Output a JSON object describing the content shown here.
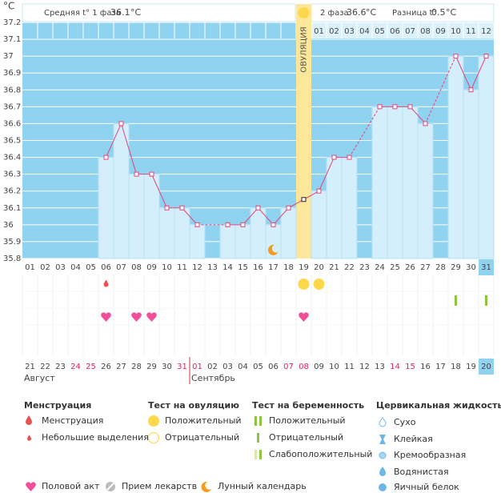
{
  "header": {
    "unit": "°C",
    "phase1_label": "Средняя t° 1 фаза",
    "phase1_avg": 36.1,
    "phase2_label": "2 фаза",
    "phase2_avg": 36.6,
    "diff_label": "Разница t°",
    "diff": 0.5
  },
  "chart_data": {
    "type": "line",
    "categories": [
      "01",
      "02",
      "03",
      "04",
      "05",
      "06",
      "07",
      "08",
      "09",
      "10",
      "11",
      "12",
      "13",
      "14",
      "15",
      "16",
      "17",
      "18",
      "19",
      "20",
      "21",
      "22",
      "23",
      "24",
      "25",
      "26",
      "27",
      "28",
      "29",
      "30",
      "31"
    ],
    "values": [
      null,
      null,
      null,
      null,
      null,
      36.4,
      36.6,
      36.3,
      36.3,
      36.1,
      36.1,
      36.0,
      null,
      36.0,
      36.0,
      36.1,
      36.0,
      36.1,
      36.15,
      36.2,
      36.4,
      36.4,
      null,
      36.7,
      36.7,
      36.7,
      36.6,
      null,
      37.0,
      36.8,
      37.0
    ],
    "ylim": [
      35.8,
      37.2
    ],
    "yticks": [
      35.8,
      35.9,
      36,
      36.1,
      36.2,
      36.3,
      36.4,
      36.5,
      36.6,
      36.7,
      36.8,
      36.9,
      37,
      37.1,
      37.2
    ],
    "color": "#e0457b",
    "bar_color": "#d4effb",
    "current_day": "31",
    "ovulation_day": "19",
    "ovulation_label": "ОВУЛЯЦИЯ",
    "phase2_days": [
      "01",
      "02",
      "03",
      "04",
      "05",
      "06",
      "07",
      "08",
      "09",
      "10",
      "11",
      "12"
    ],
    "moon_days": [
      "17"
    ],
    "menstruation_days": [
      "06"
    ],
    "ovulation_test_positive_days": [
      "19",
      "20"
    ],
    "pregnancy_test_positive_days": [
      "29",
      "31"
    ],
    "sex_days": [
      "06",
      "08",
      "09",
      "19"
    ],
    "dates": [
      {
        "label": "21",
        "weekend": false
      },
      {
        "label": "22",
        "weekend": false
      },
      {
        "label": "23",
        "weekend": false
      },
      {
        "label": "24",
        "weekend": true
      },
      {
        "label": "25",
        "weekend": true
      },
      {
        "label": "26",
        "weekend": false
      },
      {
        "label": "27",
        "weekend": false
      },
      {
        "label": "28",
        "weekend": false
      },
      {
        "label": "29",
        "weekend": false
      },
      {
        "label": "30",
        "weekend": false
      },
      {
        "label": "31",
        "weekend": true
      },
      {
        "label": "01",
        "weekend": true
      },
      {
        "label": "02",
        "weekend": false
      },
      {
        "label": "03",
        "weekend": false
      },
      {
        "label": "04",
        "weekend": false
      },
      {
        "label": "05",
        "weekend": false
      },
      {
        "label": "06",
        "weekend": false
      },
      {
        "label": "07",
        "weekend": true
      },
      {
        "label": "08",
        "weekend": true
      },
      {
        "label": "09",
        "weekend": false
      },
      {
        "label": "10",
        "weekend": false
      },
      {
        "label": "11",
        "weekend": false
      },
      {
        "label": "12",
        "weekend": false
      },
      {
        "label": "13",
        "weekend": false
      },
      {
        "label": "14",
        "weekend": true
      },
      {
        "label": "15",
        "weekend": true
      },
      {
        "label": "16",
        "weekend": false
      },
      {
        "label": "17",
        "weekend": false
      },
      {
        "label": "18",
        "weekend": false
      },
      {
        "label": "19",
        "weekend": false
      },
      {
        "label": "20",
        "weekend": false
      }
    ],
    "months": [
      {
        "label": "Август",
        "start": "21"
      },
      {
        "label": "Сентябрь",
        "start": "01"
      }
    ]
  },
  "legend": {
    "menstruation": {
      "title": "Менструация",
      "items": [
        "Менструация",
        "Небольшие выделения"
      ]
    },
    "ovulation_test": {
      "title": "Тест на овуляцию",
      "items": [
        "Положительный",
        "Отрицательный"
      ]
    },
    "pregnancy_test": {
      "title": "Тест на беременность",
      "items": [
        "Положительный",
        "Отрицательный",
        "Слабоположительный"
      ]
    },
    "cervical": {
      "title": "Цервикальная жидкость",
      "items": [
        "Сухо",
        "Клейкая",
        "Кремообразная",
        "Водянистая",
        "Яичный белок"
      ]
    },
    "other": [
      "Половой акт",
      "Прием лекарств",
      "Лунный календарь"
    ]
  }
}
